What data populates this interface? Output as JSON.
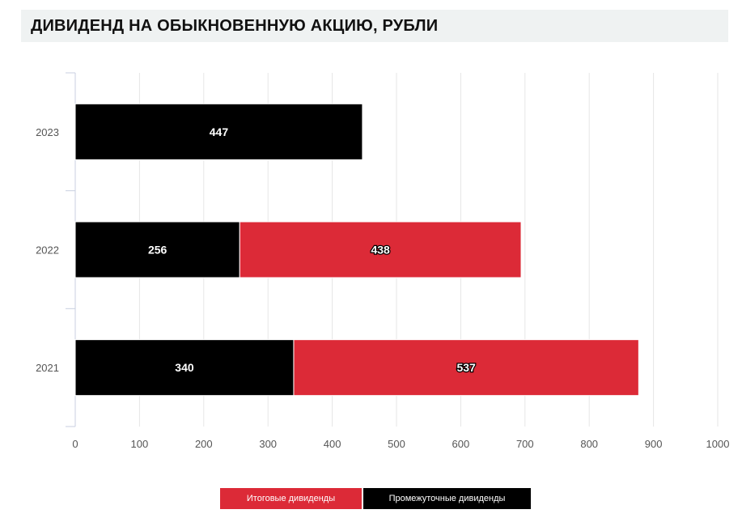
{
  "title": "ДИВИДЕНД НА ОБЫКНОВЕННУЮ АКЦИЮ, РУБЛИ",
  "chart_data": {
    "type": "bar",
    "orientation": "horizontal",
    "stacked": true,
    "categories": [
      "2023",
      "2022",
      "2021"
    ],
    "series": [
      {
        "name": "Промежуточные дивиденды",
        "color": "#000000",
        "values": [
          447,
          256,
          340
        ]
      },
      {
        "name": "Итоговые дивиденды",
        "color": "#dc2a37",
        "values": [
          0,
          438,
          537
        ]
      }
    ],
    "xlim": [
      0,
      1000
    ],
    "xticks": [
      0,
      100,
      200,
      300,
      400,
      500,
      600,
      700,
      800,
      900,
      1000
    ],
    "grid": true,
    "legend": {
      "placement": "bottom",
      "items": [
        {
          "label": "Итоговые дивиденды",
          "color": "#dc2a37"
        },
        {
          "label": "Промежуточные дивиденды",
          "color": "#000000"
        }
      ]
    }
  }
}
